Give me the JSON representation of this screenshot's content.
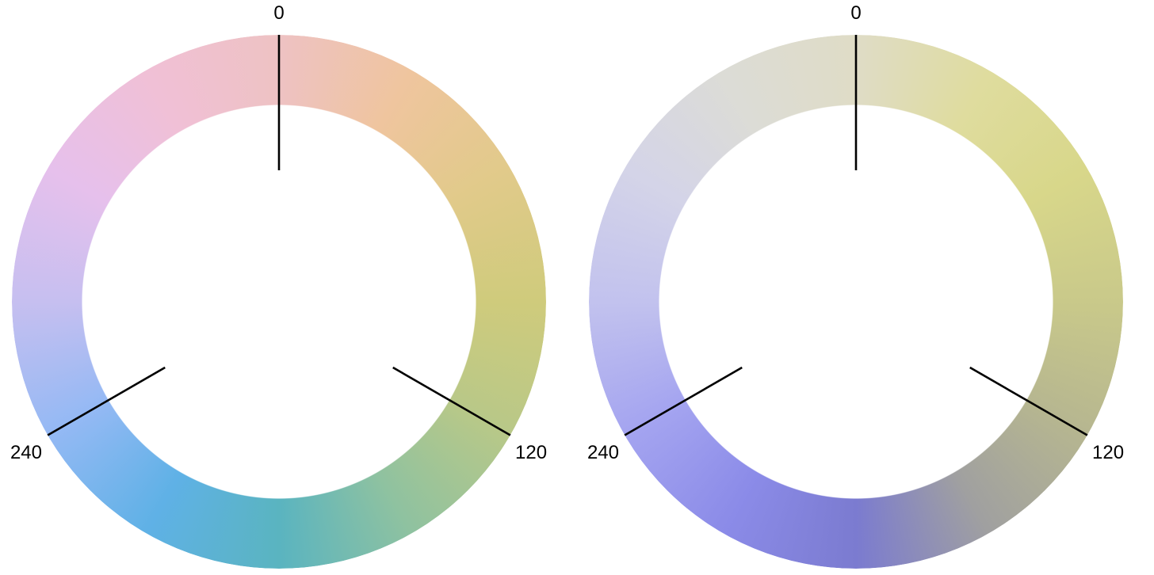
{
  "wheels": [
    {
      "stops": [
        {
          "hue": 0,
          "color": "#eec2c3"
        },
        {
          "hue": 30,
          "color": "#efc59e"
        },
        {
          "hue": 60,
          "color": "#e1ca8a"
        },
        {
          "hue": 90,
          "color": "#cfcb7c"
        },
        {
          "hue": 120,
          "color": "#b8c888"
        },
        {
          "hue": 150,
          "color": "#8fc2a0"
        },
        {
          "hue": 180,
          "color": "#5ab4c0"
        },
        {
          "hue": 210,
          "color": "#5fb1e6"
        },
        {
          "hue": 240,
          "color": "#94b9f4"
        },
        {
          "hue": 270,
          "color": "#c6bff0"
        },
        {
          "hue": 300,
          "color": "#e6c0ec"
        },
        {
          "hue": 330,
          "color": "#f0c0d6"
        },
        {
          "hue": 360,
          "color": "#eec2c3"
        }
      ],
      "ticks": [
        {
          "hue": 0,
          "label": "0"
        },
        {
          "hue": 120,
          "label": "120"
        },
        {
          "hue": 240,
          "label": "240"
        }
      ]
    },
    {
      "stops": [
        {
          "hue": 0,
          "color": "#dfdcc6"
        },
        {
          "hue": 30,
          "color": "#dfdc9e"
        },
        {
          "hue": 60,
          "color": "#d8d78a"
        },
        {
          "hue": 90,
          "color": "#c9c98a"
        },
        {
          "hue": 120,
          "color": "#b6b690"
        },
        {
          "hue": 150,
          "color": "#a0a0a0"
        },
        {
          "hue": 180,
          "color": "#7b7bd0"
        },
        {
          "hue": 210,
          "color": "#8b8be8"
        },
        {
          "hue": 240,
          "color": "#a4a4f0"
        },
        {
          "hue": 270,
          "color": "#c2c2ee"
        },
        {
          "hue": 300,
          "color": "#d4d4e8"
        },
        {
          "hue": 330,
          "color": "#dcdcd6"
        },
        {
          "hue": 360,
          "color": "#dfdcc6"
        }
      ],
      "ticks": [
        {
          "hue": 0,
          "label": "0"
        },
        {
          "hue": 120,
          "label": "120"
        },
        {
          "hue": 240,
          "label": "240"
        }
      ]
    }
  ]
}
